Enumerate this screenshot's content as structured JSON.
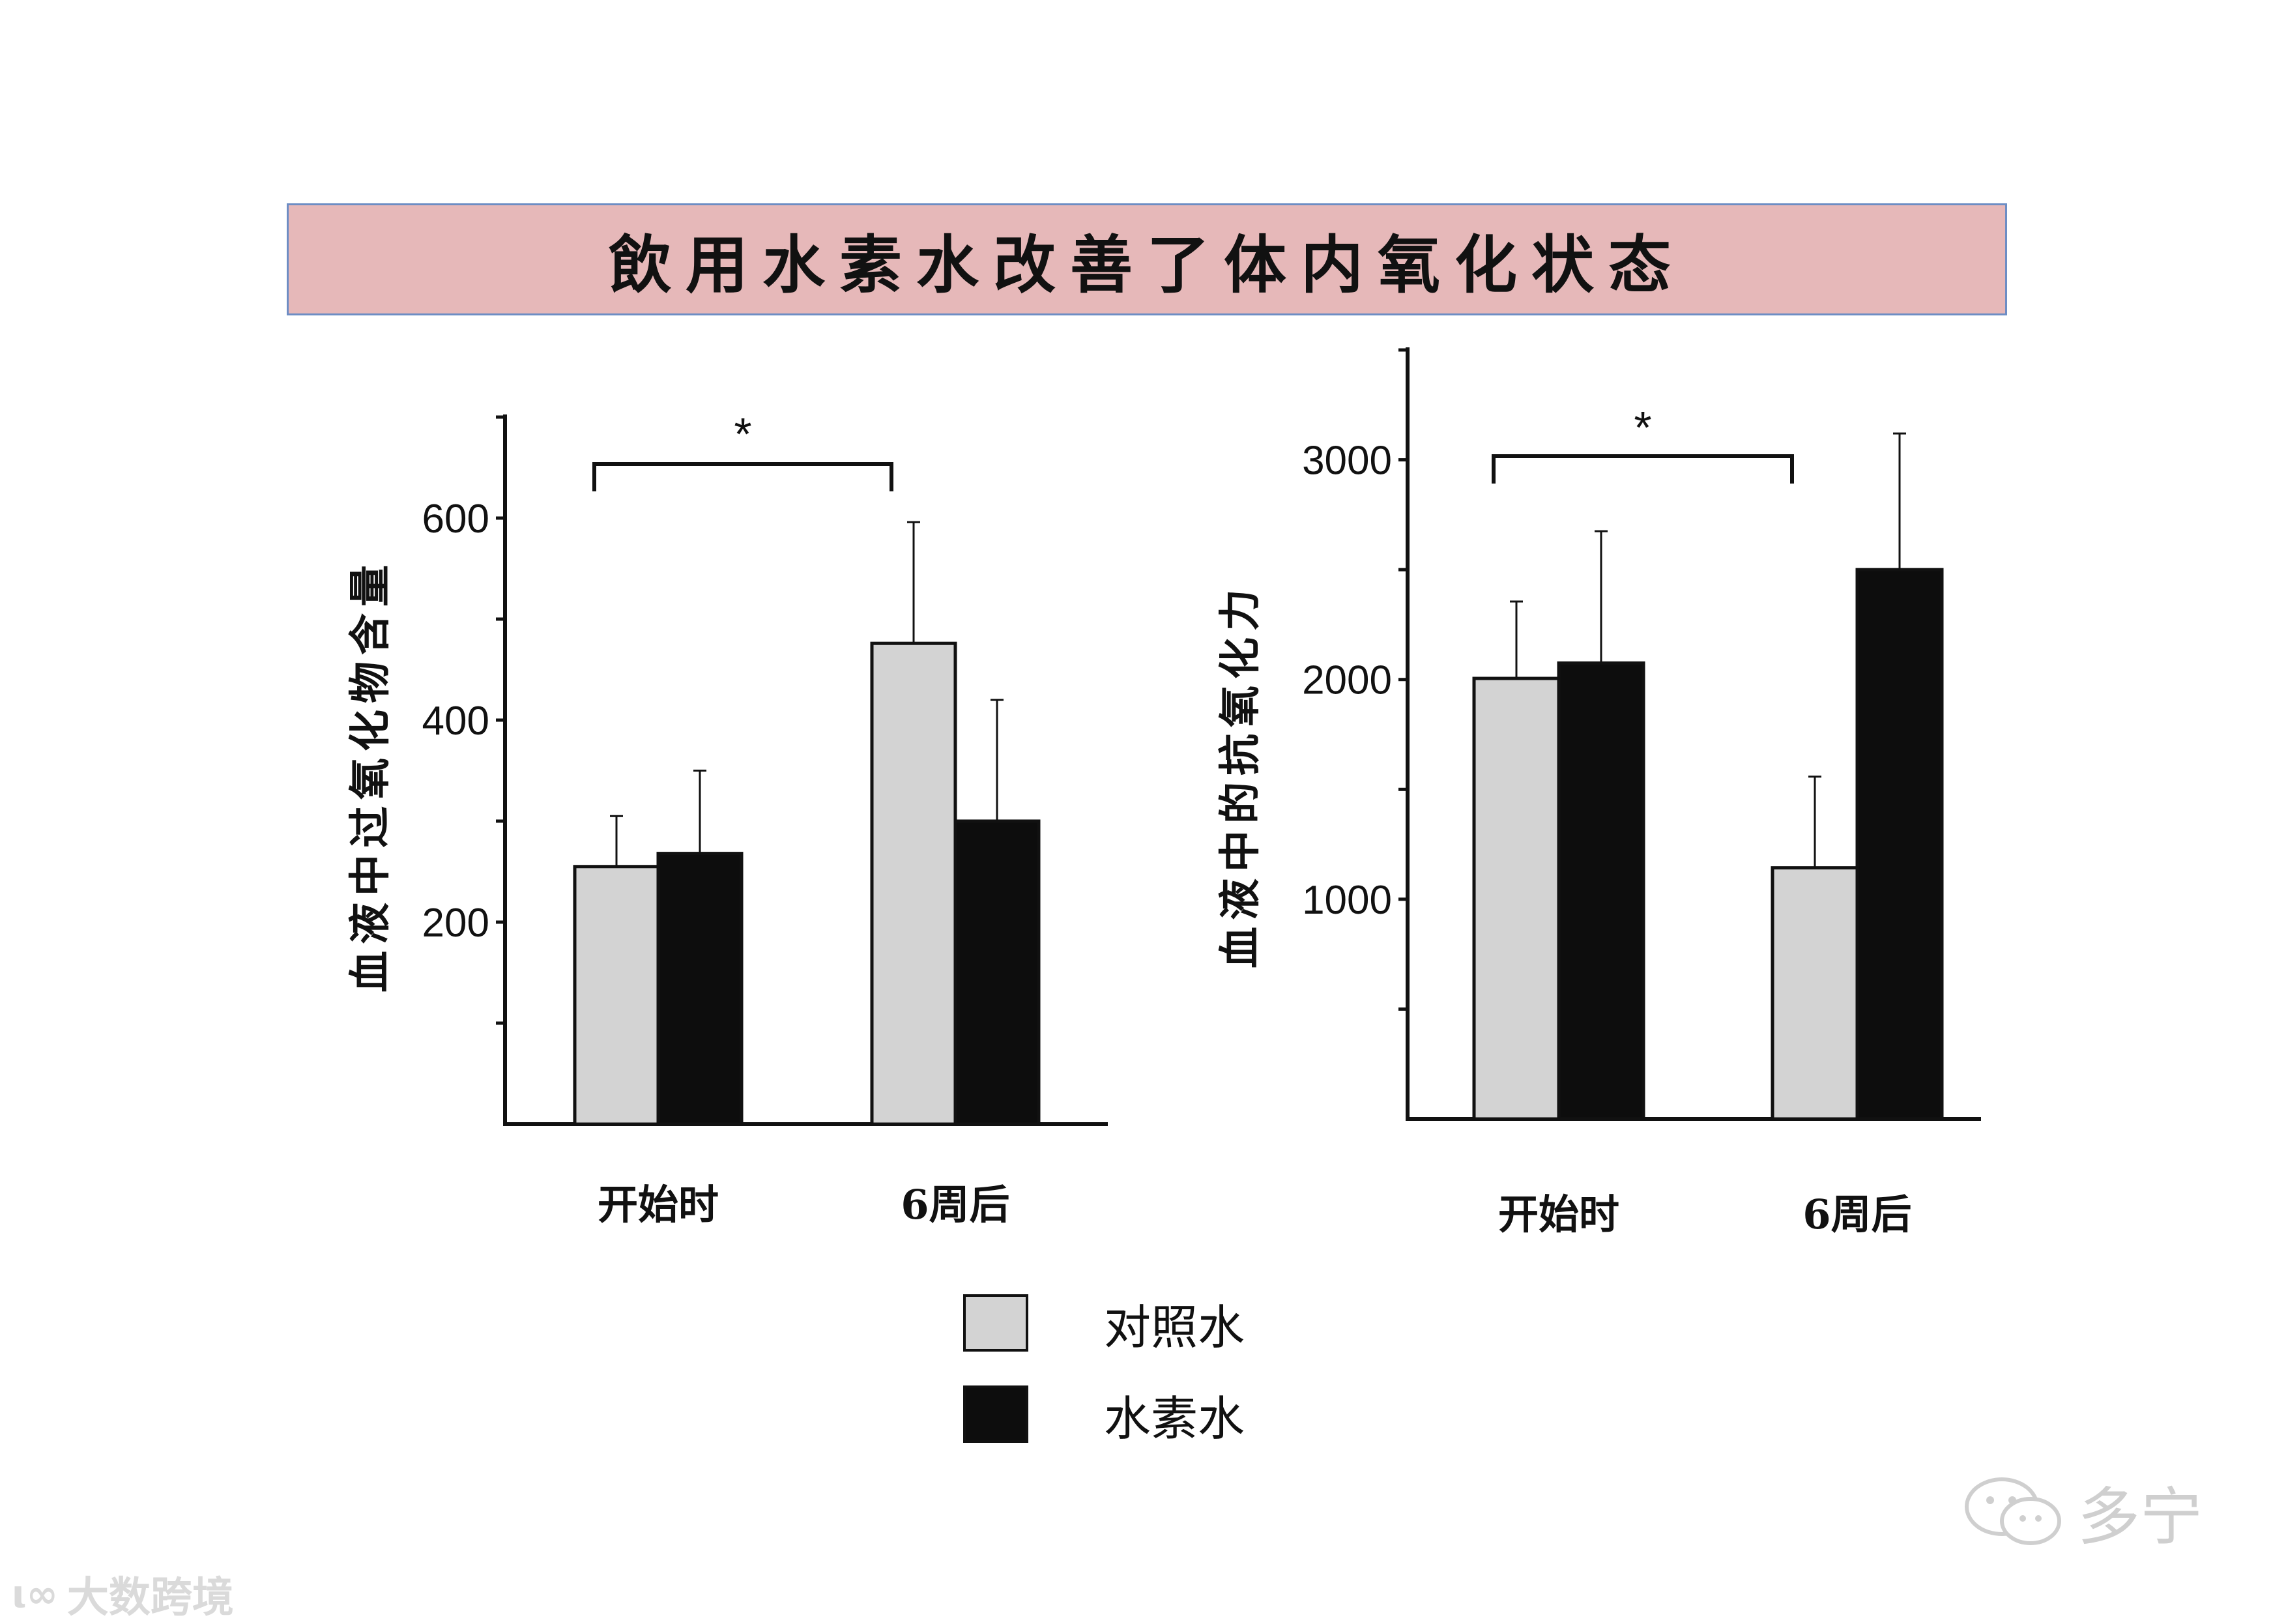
{
  "title": "飲用水素水改善了体内氧化状态",
  "chart_data": [
    {
      "type": "bar",
      "ylabel": "血液中过氧化物含量",
      "categories": [
        "开始时",
        "6周后"
      ],
      "series": [
        {
          "name": "对照水",
          "values": [
            255,
            476
          ],
          "errors": [
            50,
            120
          ]
        },
        {
          "name": "水素水",
          "values": [
            268,
            300
          ],
          "errors": [
            82,
            120
          ]
        }
      ],
      "ylim": [
        0,
        700
      ],
      "yticks": [
        100,
        200,
        300,
        400,
        500,
        600,
        700
      ],
      "ytick_labels": [
        "",
        "200",
        "",
        "400",
        "",
        "600",
        ""
      ],
      "significance": {
        "between": [
          "开始时",
          "6周后"
        ],
        "label": "*"
      }
    },
    {
      "type": "bar",
      "ylabel": "血液中的抗氧化力",
      "categories": [
        "开始时",
        "6周后"
      ],
      "series": [
        {
          "name": "对照水",
          "values": [
            2005,
            1143
          ],
          "errors": [
            350,
            415
          ]
        },
        {
          "name": "水素水",
          "values": [
            2075,
            2500
          ],
          "errors": [
            600,
            620
          ]
        }
      ],
      "ylim": [
        0,
        3500
      ],
      "yticks": [
        500,
        1000,
        1500,
        2000,
        2500,
        3000,
        3500
      ],
      "ytick_labels": [
        "",
        "1000",
        "",
        "2000",
        "",
        "3000",
        ""
      ],
      "significance": {
        "between": [
          "开始时",
          "6周后"
        ],
        "label": "*"
      }
    }
  ],
  "legend": [
    {
      "label": "对照水",
      "color": "#d3d3d3"
    },
    {
      "label": "水素水",
      "color": "#0d0d0d"
    }
  ],
  "colors": {
    "control": "#d3d3d3",
    "hydrogen": "#0d0d0d",
    "banner": "#e6b8b9"
  },
  "watermarks": {
    "left": "大数跨境",
    "right": "多宁"
  }
}
